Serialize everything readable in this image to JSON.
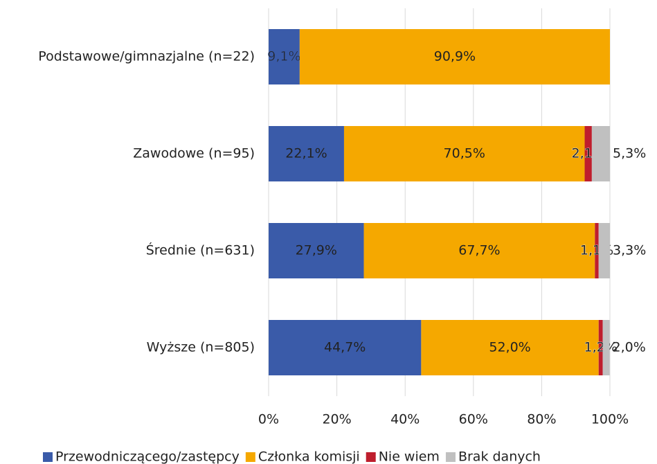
{
  "chart_data": {
    "type": "stacked_bar_horizontal",
    "categories": [
      "Podstawowe/gimnazjalne (n=22)",
      "Zawodowe (n=95)",
      "Średnie (n=631)",
      "Wyższe (n=805)"
    ],
    "series": [
      {
        "name": "Przewodniczącego/zastępcy",
        "color": "#3a5ba9",
        "label_color": "#ffffff",
        "values": [
          9.1,
          22.1,
          27.9,
          44.7
        ],
        "value_labels": [
          "9,1%",
          "22,1%",
          "27,9%",
          "44,7%"
        ]
      },
      {
        "name": "Członka komisji",
        "color": "#f5a800",
        "label_color": "#ffffff",
        "values": [
          90.9,
          70.5,
          67.7,
          52.0
        ],
        "value_labels": [
          "90,9%",
          "70,5%",
          "67,7%",
          "52,0%"
        ]
      },
      {
        "name": "Nie wiem",
        "color": "#be1e2d",
        "label_color": "#be1e2d",
        "values": [
          null,
          2.1,
          1.1,
          1.2
        ],
        "value_labels": [
          null,
          "2,1%",
          "1,1%",
          "1,2%"
        ]
      },
      {
        "name": "Brak danych",
        "color": "#c0c0c0",
        "label_color": "#c0c0c0",
        "values": [
          null,
          5.3,
          3.3,
          2.0
        ],
        "value_labels": [
          null,
          "5,3%",
          "3,3%",
          "2,0%"
        ]
      }
    ],
    "xlim": [
      0,
      100
    ],
    "xticks": [
      {
        "value": 0,
        "label": "0%"
      },
      {
        "value": 20,
        "label": "20%"
      },
      {
        "value": 40,
        "label": "40%"
      },
      {
        "value": 60,
        "label": "60%"
      },
      {
        "value": 80,
        "label": "80%"
      },
      {
        "value": 100,
        "label": "100%"
      }
    ],
    "grid": true,
    "legend": "bottom"
  }
}
